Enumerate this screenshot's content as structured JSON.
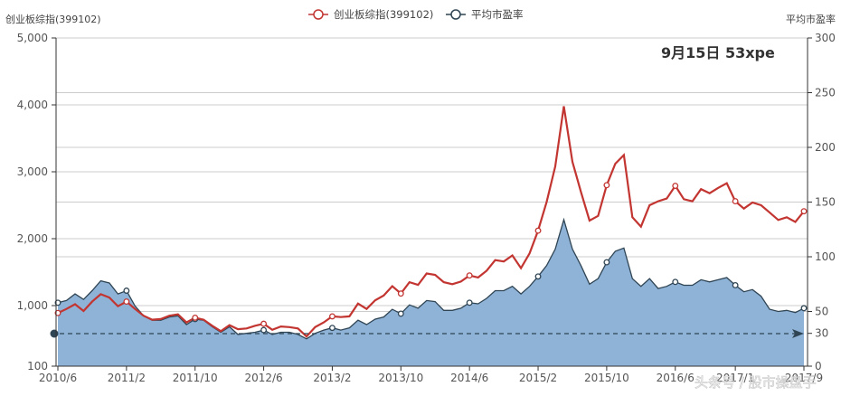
{
  "chart_data": {
    "type": "line",
    "title": "",
    "annotation": "9月15日 53xpe",
    "legend": [
      {
        "name": "创业板综指(399102)",
        "color": "#c23531",
        "axis": "left",
        "style": "line"
      },
      {
        "name": "平均市盈率",
        "color": "#2f4554",
        "axis": "right",
        "style": "area",
        "fill": "#8fb2d7"
      }
    ],
    "legend_position": "top-center",
    "left_axis": {
      "name": "创业板综指(399102)",
      "ticks": [
        "5,000",
        "4,000",
        "3,000",
        "2,000",
        "1,000",
        "100"
      ],
      "range": [
        100,
        5000
      ]
    },
    "right_axis": {
      "name": "平均市盈率",
      "ticks": [
        "300",
        "250",
        "200",
        "150",
        "100",
        "50",
        "30",
        "0"
      ],
      "range": [
        0,
        300
      ]
    },
    "x_tick_labels": [
      "2010/6",
      "2011/2",
      "2011/10",
      "2012/6",
      "2013/2",
      "2013/10",
      "2014/6",
      "2015/2",
      "2015/10",
      "2016/6",
      "2017/1",
      "2017/9"
    ],
    "grid": true,
    "mark_line": {
      "axis": "right",
      "value": 30,
      "style": "dashed",
      "color": "#2f4554"
    },
    "x": [
      "2010/6",
      "2010/7",
      "2010/8",
      "2010/9",
      "2010/10",
      "2010/11",
      "2010/12",
      "2011/1",
      "2011/2",
      "2011/3",
      "2011/4",
      "2011/5",
      "2011/6",
      "2011/7",
      "2011/8",
      "2011/9",
      "2011/10",
      "2011/11",
      "2011/12",
      "2012/1",
      "2012/2",
      "2012/3",
      "2012/4",
      "2012/5",
      "2012/6",
      "2012/7",
      "2012/8",
      "2012/9",
      "2012/10",
      "2012/11",
      "2012/12",
      "2013/1",
      "2013/2",
      "2013/3",
      "2013/4",
      "2013/5",
      "2013/6",
      "2013/7",
      "2013/8",
      "2013/9",
      "2013/10",
      "2013/11",
      "2013/12",
      "2014/1",
      "2014/2",
      "2014/3",
      "2014/4",
      "2014/5",
      "2014/6",
      "2014/7",
      "2014/8",
      "2014/9",
      "2014/10",
      "2014/11",
      "2014/12",
      "2015/1",
      "2015/2",
      "2015/3",
      "2015/4",
      "2015/5",
      "2015/6",
      "2015/7",
      "2015/8",
      "2015/9",
      "2015/10",
      "2015/11",
      "2015/12",
      "2016/1",
      "2016/2",
      "2016/3",
      "2016/4",
      "2016/5",
      "2016/6",
      "2016/7",
      "2016/8",
      "2016/9",
      "2016/10",
      "2016/11",
      "2016/12",
      "2017/1",
      "2017/2",
      "2017/3",
      "2017/4",
      "2017/5",
      "2017/6",
      "2017/7",
      "2017/8",
      "2017/9"
    ],
    "series": [
      {
        "name": "创业板综指(399102)",
        "values": [
          890,
          950,
          1020,
          920,
          1060,
          1170,
          1120,
          990,
          1060,
          950,
          850,
          790,
          800,
          850,
          870,
          750,
          820,
          790,
          700,
          620,
          710,
          650,
          660,
          700,
          730,
          640,
          690,
          680,
          660,
          540,
          680,
          750,
          840,
          830,
          840,
          1030,
          950,
          1080,
          1150,
          1290,
          1180,
          1350,
          1310,
          1480,
          1460,
          1350,
          1320,
          1360,
          1450,
          1420,
          1520,
          1680,
          1660,
          1750,
          1560,
          1780,
          2120,
          2550,
          3080,
          3980,
          3150,
          2700,
          2270,
          2340,
          2800,
          3120,
          3250,
          2320,
          2180,
          2500,
          2560,
          2600,
          2790,
          2590,
          2560,
          2740,
          2680,
          2760,
          2830,
          2560,
          2450,
          2540,
          2500,
          2390,
          2280,
          2320,
          2250,
          2410
        ]
      },
      {
        "name": "平均市盈率",
        "values": [
          58,
          60,
          66,
          61,
          69,
          78,
          76,
          66,
          69,
          55,
          46,
          42,
          42,
          45,
          46,
          38,
          43,
          42,
          36,
          31,
          36,
          29,
          30,
          31,
          33,
          29,
          31,
          31,
          29,
          25,
          30,
          33,
          35,
          33,
          35,
          42,
          38,
          43,
          45,
          52,
          48,
          56,
          53,
          60,
          59,
          51,
          51,
          53,
          58,
          57,
          62,
          69,
          69,
          73,
          66,
          73,
          82,
          92,
          107,
          134,
          107,
          92,
          75,
          80,
          95,
          105,
          108,
          80,
          73,
          80,
          71,
          73,
          77,
          74,
          74,
          79,
          77,
          79,
          81,
          74,
          68,
          70,
          64,
          52,
          50,
          51,
          49,
          53
        ]
      }
    ],
    "point_markers": {
      "left_series_marked_x": [
        "2010/6",
        "2011/2",
        "2011/10",
        "2012/6",
        "2013/2",
        "2013/10",
        "2014/6",
        "2015/2",
        "2015/10",
        "2016/6",
        "2017/1",
        "2017/9"
      ],
      "right_series_marked_x": [
        "2010/6",
        "2011/2",
        "2011/10",
        "2012/6",
        "2013/2",
        "2013/10",
        "2014/6",
        "2015/2",
        "2015/10",
        "2016/6",
        "2017/1",
        "2017/9"
      ]
    }
  },
  "watermark": "头条号 / 股市操盘手"
}
